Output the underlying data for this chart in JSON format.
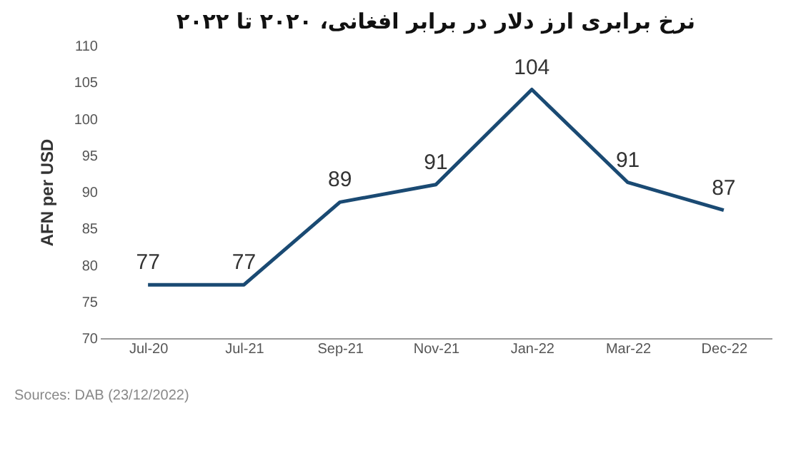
{
  "chart_data": {
    "type": "line",
    "title": "نرخ برابری ارز دلار در برابر افغانی، ۲۰۲۰ تا ۲۰۲۲",
    "ylabel": "AFN per USD",
    "categories": [
      "Jul-20",
      "Jul-21",
      "Sep-21",
      "Nov-21",
      "Jan-22",
      "Mar-22",
      "Dec-22"
    ],
    "series": [
      {
        "color": "#1a4a73",
        "values": [
          77.3,
          77.3,
          88.6,
          91,
          104,
          91.3,
          87.5
        ],
        "value_labels": [
          "77",
          "77",
          "89",
          "91",
          "104",
          "91",
          "87"
        ]
      }
    ],
    "ylim": [
      70,
      110
    ],
    "yticks": [
      70,
      75,
      80,
      85,
      90,
      95,
      100,
      105,
      110
    ],
    "marker": "none",
    "line_style": "solid",
    "annotations": [
      "Sources: DAB (23/12/2022)"
    ]
  }
}
